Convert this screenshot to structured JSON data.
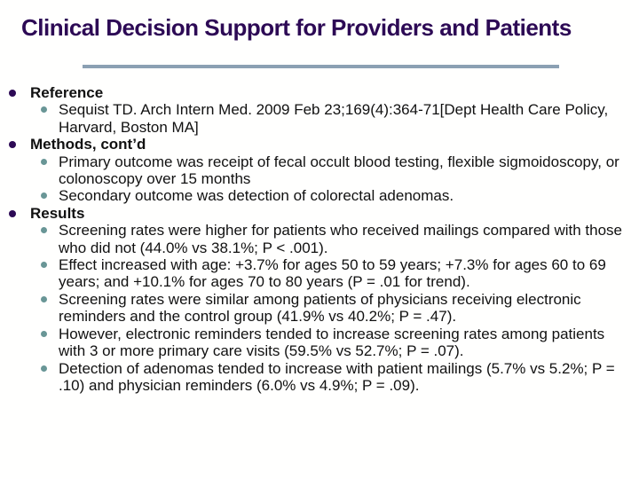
{
  "slide": {
    "title": "Clinical Decision Support for Providers and Patients",
    "bullets": [
      {
        "level": 1,
        "bold": true,
        "text": "Reference"
      },
      {
        "level": 2,
        "bold": false,
        "text": "Sequist TD. Arch Intern Med. 2009 Feb 23;169(4):364-71[Dept Health Care Policy, Harvard, Boston MA]"
      },
      {
        "level": 1,
        "bold": true,
        "text": "Methods, cont’d"
      },
      {
        "level": 2,
        "bold": false,
        "text": "Primary outcome was receipt of fecal occult blood testing, flexible sigmoidoscopy, or colonoscopy over 15 months"
      },
      {
        "level": 2,
        "bold": false,
        "text": "Secondary outcome was detection of colorectal adenomas."
      },
      {
        "level": 1,
        "bold": true,
        "text": "Results"
      },
      {
        "level": 2,
        "bold": false,
        "text": "Screening rates were higher for patients who received mailings compared with those who did not (44.0% vs 38.1%; P < .001)."
      },
      {
        "level": 2,
        "bold": false,
        "text": "Effect increased with age: +3.7% for ages 50 to 59 years; +7.3% for ages 60 to 69 years; and +10.1% for ages 70 to 80 years (P = .01 for trend)."
      },
      {
        "level": 2,
        "bold": false,
        "text": "Screening rates were similar among patients of physicians receiving electronic reminders and the control group (41.9% vs 40.2%; P = .47)."
      },
      {
        "level": 2,
        "bold": false,
        "text": "However, electronic reminders tended to increase screening rates among patients with 3 or more primary care visits (59.5% vs 52.7%; P = .07)."
      },
      {
        "level": 2,
        "bold": false,
        "text": "Detection of adenomas tended to increase with patient mailings (5.7% vs 5.2%; P = .10) and physician reminders (6.0% vs 4.9%; P = .09)."
      }
    ]
  },
  "colors": {
    "title_color": "#2d0a55",
    "text_color": "#111111",
    "divider_color": "#8ba0b3",
    "bullet_l1_color": "#2d0a55",
    "bullet_l2_color": "#699696",
    "bg_color": "#fffffe"
  }
}
